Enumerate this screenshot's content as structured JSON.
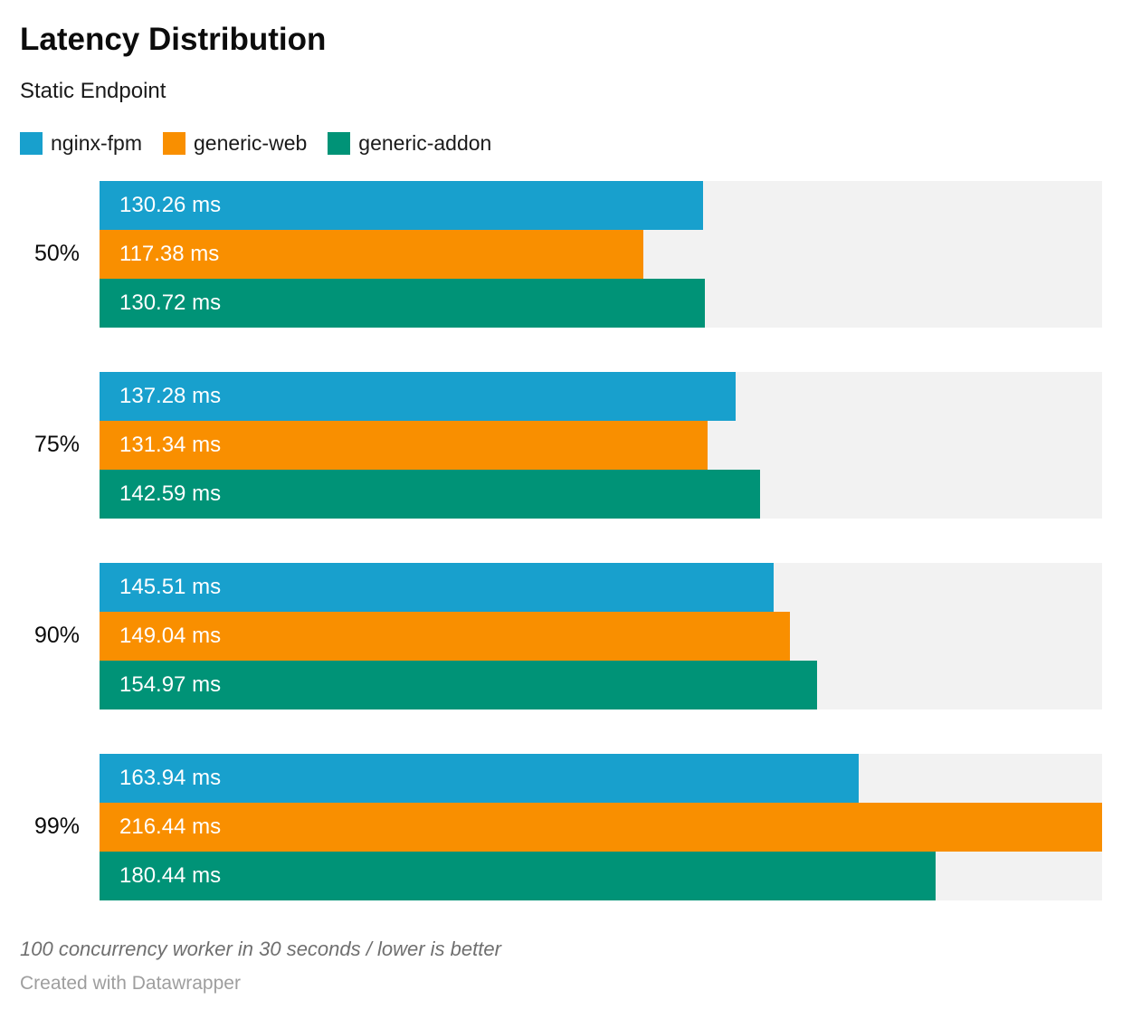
{
  "header": {
    "title": "Latency Distribution",
    "subtitle": "Static Endpoint"
  },
  "chart_data": {
    "type": "bar",
    "orientation": "horizontal",
    "title": "Latency Distribution",
    "subtitle": "Static Endpoint",
    "unit": "ms",
    "categories": [
      "50%",
      "75%",
      "90%",
      "99%"
    ],
    "series": [
      {
        "name": "nginx-fpm",
        "color": "#18A0CD",
        "values": [
          130.26,
          137.28,
          145.51,
          163.94
        ]
      },
      {
        "name": "generic-web",
        "color": "#F98F00",
        "values": [
          117.38,
          131.34,
          149.04,
          216.44
        ]
      },
      {
        "name": "generic-addon",
        "color": "#009377",
        "values": [
          130.72,
          142.59,
          154.97,
          180.44
        ]
      }
    ],
    "xlim": [
      0,
      216.44
    ],
    "value_label_format": "{value} ms",
    "legend_position": "top",
    "grid": false,
    "track_color": "#F2F2F2",
    "xlabel": "",
    "ylabel": ""
  },
  "footer": {
    "note": "100 concurrency worker in 30 seconds / lower is better",
    "attribution": "Created with Datawrapper"
  }
}
